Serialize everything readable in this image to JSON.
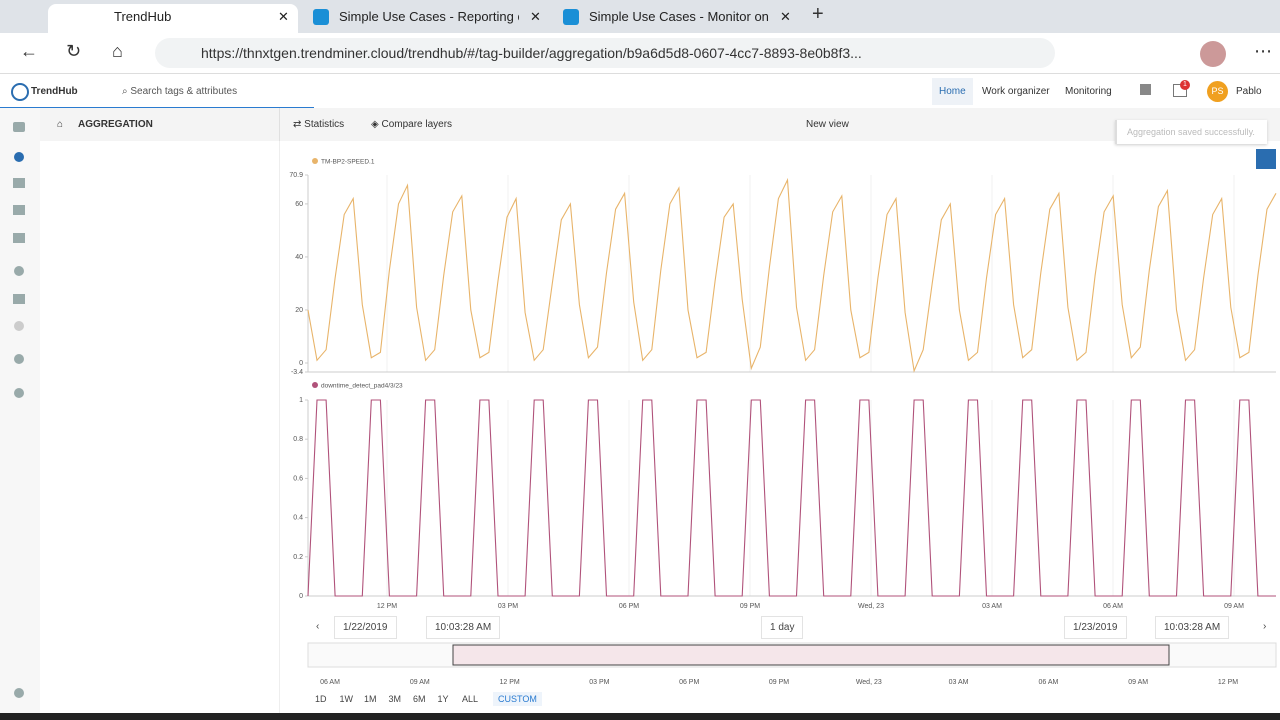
{
  "browser": {
    "tabs": [
      "TrendHub",
      "Simple Use Cases - Reporting on",
      "Simple Use Cases - Monitor on P"
    ],
    "url": "https://thnxtgen.trendminer.cloud/trendhub/#/tag-builder/aggregation/b9a6d5d8-0607-4cc7-8893-8e0b8f3..."
  },
  "app": {
    "logo": "TrendHub",
    "search": "Search tags & attributes",
    "nav": [
      "Home",
      "Work organizer",
      "Monitoring"
    ],
    "notifications": "1",
    "user_initials": "PS",
    "user": "Pablo"
  },
  "toolbar": {
    "section": "AGGREGATION",
    "statistics": "Statistics",
    "compare": "Compare layers",
    "view": "New view",
    "toast": "Aggregation saved successfully."
  },
  "charts": [
    {
      "type": "line",
      "name": "TM-BP2-SPEED.1",
      "color": "#e8b46a",
      "ylim": [
        -3.4,
        70.9
      ],
      "yticks": [
        70.9,
        60,
        40,
        20,
        0,
        -3.4
      ],
      "values": [
        20,
        1,
        5,
        32,
        56,
        62,
        22,
        2,
        4,
        35,
        60,
        67,
        21,
        1,
        5,
        33,
        57,
        63,
        20,
        2,
        4,
        31,
        55,
        62,
        19,
        1,
        5,
        30,
        54,
        60,
        22,
        2,
        6,
        34,
        58,
        64,
        23,
        1,
        5,
        35,
        60,
        66,
        20,
        2,
        4,
        31,
        55,
        60,
        24,
        -2,
        6,
        36,
        62,
        69,
        21,
        1,
        5,
        33,
        57,
        63,
        20,
        2,
        4,
        32,
        56,
        62,
        19,
        -3,
        5,
        30,
        54,
        60,
        20,
        1,
        4,
        32,
        56,
        62,
        22,
        2,
        5,
        34,
        58,
        64,
        21,
        1,
        4,
        33,
        57,
        63,
        22,
        2,
        6,
        35,
        59,
        65,
        20,
        1,
        5,
        32,
        56,
        62,
        21,
        2,
        4,
        33,
        58,
        64
      ]
    },
    {
      "type": "line",
      "name": "downtime_detect_pad4/3/23",
      "color": "#b0527a",
      "ylim": [
        0,
        1
      ],
      "yticks": [
        1,
        0.8,
        0.6,
        0.4,
        0.2,
        0
      ],
      "values": [
        0,
        1,
        1,
        0,
        0,
        0,
        0,
        1,
        1,
        0,
        0,
        0,
        0,
        1,
        1,
        0,
        0,
        0,
        0,
        1,
        1,
        0,
        0,
        0,
        0,
        1,
        1,
        0,
        0,
        0,
        0,
        1,
        1,
        0,
        0,
        0,
        0,
        1,
        1,
        0,
        0,
        0,
        0,
        1,
        1,
        0,
        0,
        0,
        0,
        1,
        1,
        0,
        0,
        0,
        0,
        1,
        1,
        0,
        0,
        0,
        0,
        1,
        1,
        0,
        0,
        0,
        0,
        1,
        1,
        0,
        0,
        0,
        0,
        1,
        1,
        0,
        0,
        0,
        0,
        1,
        1,
        0,
        0,
        0,
        0,
        1,
        1,
        0,
        0,
        0,
        0,
        1,
        1,
        0,
        0,
        0,
        0,
        1,
        1,
        0,
        0,
        0,
        0,
        1,
        1,
        0,
        0,
        0
      ]
    }
  ],
  "x_axis": {
    "labels": [
      "12 PM",
      "03 PM",
      "06 PM",
      "09 PM",
      "Wed, 23",
      "03 AM",
      "06 AM",
      "09 AM"
    ]
  },
  "timebar": {
    "start_date": "1/22/2019",
    "start_time": "10:03:28 AM",
    "span": "1 day",
    "end_date": "1/23/2019",
    "end_time": "10:03:28 AM"
  },
  "overview_labels": [
    "06 AM",
    "09 AM",
    "12 PM",
    "03 PM",
    "06 PM",
    "09 PM",
    "Wed, 23",
    "03 AM",
    "06 AM",
    "09 AM",
    "12 PM"
  ],
  "ranges": [
    "1D",
    "1W",
    "1M",
    "3M",
    "6M",
    "1Y",
    "ALL"
  ],
  "custom": "CUSTOM"
}
